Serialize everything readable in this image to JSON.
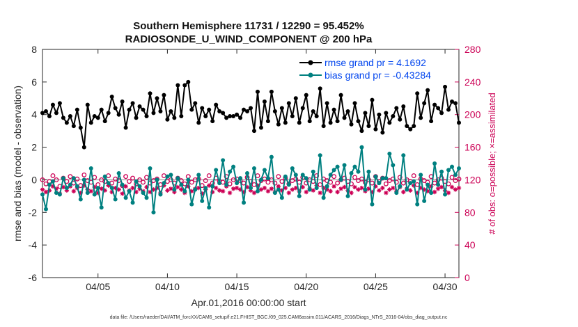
{
  "chart_data": {
    "type": "line",
    "title": "Southern Hemisphere 11731 / 12290 = 95.452%",
    "subtitle": "RADIOSONDE_U_WIND_COMPONENT @ 200 hPa",
    "xlabel": "Apr.01,2016 00:00:00 start",
    "ylabel": "rmse and bias (model - observation)",
    "y2label": "# of obs: o=possible; ×=assimilated",
    "xlim": [
      1,
      31
    ],
    "ylim": [
      -6,
      8
    ],
    "y2lim": [
      0,
      280
    ],
    "x_ticks": [
      5,
      10,
      15,
      20,
      25,
      30
    ],
    "x_tick_labels": [
      "04/05",
      "04/10",
      "04/15",
      "04/20",
      "04/25",
      "04/30"
    ],
    "y_ticks": [
      -6,
      -4,
      -2,
      0,
      2,
      4,
      6,
      8
    ],
    "y_tick_labels": [
      "-6",
      "-4",
      "-2",
      "0",
      "2",
      "4",
      "6",
      "8"
    ],
    "y2_ticks": [
      0,
      40,
      80,
      120,
      160,
      200,
      240,
      280
    ],
    "y2_tick_labels": [
      "0",
      "40",
      "80",
      "120",
      "160",
      "200",
      "240",
      "280"
    ],
    "x": [
      1.0,
      1.25,
      1.5,
      1.75,
      2.0,
      2.25,
      2.5,
      2.75,
      3.0,
      3.25,
      3.5,
      3.75,
      4.0,
      4.25,
      4.5,
      4.75,
      5.0,
      5.25,
      5.5,
      5.75,
      6.0,
      6.25,
      6.5,
      6.75,
      7.0,
      7.25,
      7.5,
      7.75,
      8.0,
      8.25,
      8.5,
      8.75,
      9.0,
      9.25,
      9.5,
      9.75,
      10.0,
      10.25,
      10.5,
      10.75,
      11.0,
      11.25,
      11.5,
      11.75,
      12.0,
      12.25,
      12.5,
      12.75,
      13.0,
      13.25,
      13.5,
      13.75,
      14.0,
      14.25,
      14.5,
      14.75,
      15.0,
      15.25,
      15.5,
      15.75,
      16.0,
      16.25,
      16.5,
      16.75,
      17.0,
      17.25,
      17.5,
      17.75,
      18.0,
      18.25,
      18.5,
      18.75,
      19.0,
      19.25,
      19.5,
      19.75,
      20.0,
      20.25,
      20.5,
      20.75,
      21.0,
      21.25,
      21.5,
      21.75,
      22.0,
      22.25,
      22.5,
      22.75,
      23.0,
      23.25,
      23.5,
      23.75,
      24.0,
      24.25,
      24.5,
      24.75,
      25.0,
      25.25,
      25.5,
      25.75,
      26.0,
      26.25,
      26.5,
      26.75,
      27.0,
      27.25,
      27.5,
      27.75,
      28.0,
      28.25,
      28.5,
      28.75,
      29.0,
      29.25,
      29.5,
      29.75,
      30.0,
      30.25,
      30.5,
      30.75,
      31.0
    ],
    "series": [
      {
        "name": "rmse grand pr = 4.1692",
        "color": "#000000",
        "values": [
          4.1,
          4.2,
          3.9,
          4.6,
          4.1,
          4.7,
          3.8,
          3.5,
          3.9,
          3.3,
          4.3,
          3.2,
          2.0,
          4.6,
          3.5,
          3.9,
          3.8,
          4.3,
          3.6,
          4.1,
          5.1,
          4.4,
          4.0,
          4.8,
          3.2,
          4.3,
          4.7,
          3.8,
          4.5,
          4.3,
          3.9,
          5.3,
          4.1,
          5.0,
          4.2,
          5.2,
          3.7,
          4.2,
          3.8,
          5.8,
          3.9,
          5.8,
          6.0,
          4.3,
          4.7,
          3.5,
          4.4,
          3.9,
          4.3,
          3.6,
          4.6,
          4.2,
          4.1,
          3.8,
          3.9,
          3.9,
          4.0,
          3.8,
          4.3,
          4.2,
          4.4,
          3.0,
          5.4,
          3.2,
          4.8,
          3.6,
          5.4,
          4.2,
          3.4,
          4.4,
          3.5,
          4.7,
          3.9,
          5.0,
          3.5,
          4.4,
          5.2,
          3.6,
          4.2,
          3.9,
          5.6,
          3.3,
          4.7,
          3.5,
          4.3,
          3.6,
          5.2,
          3.8,
          4.2,
          3.4,
          4.7,
          3.6,
          3.0,
          4.1,
          3.3,
          4.9,
          3.1,
          4.0,
          2.9,
          4.1,
          3.5,
          3.9,
          4.4,
          3.7,
          4.5,
          3.3,
          3.1,
          3.3,
          5.3,
          3.8,
          4.7,
          5.5,
          3.6,
          4.6,
          4.4,
          4.1,
          5.7,
          4.3,
          4.8,
          4.7,
          3.5
        ],
        "rendered_markers": true
      },
      {
        "name": "bias grand pr = -0.43284",
        "color": "#008080",
        "values": [
          -0.9,
          -1.8,
          -0.3,
          -0.1,
          -0.8,
          -0.9,
          0.1,
          -0.5,
          -0.3,
          0.1,
          -0.4,
          -1.2,
          0.0,
          -0.8,
          0.7,
          -0.9,
          -0.5,
          -1.7,
          0.2,
          -0.2,
          -0.5,
          -1.2,
          0.4,
          -0.3,
          -1.1,
          -0.7,
          -1.4,
          -0.1,
          -0.4,
          -0.8,
          -1.1,
          0.7,
          -2.0,
          0.0,
          -0.9,
          -0.2,
          0.2,
          0.3,
          -0.6,
          0.1,
          -0.3,
          -0.7,
          0.0,
          -1.5,
          -0.6,
          0.3,
          -1.3,
          -0.5,
          -1.7,
          -0.4,
          0.6,
          -0.2,
          1.2,
          -0.3,
          0.5,
          0.8,
          -0.2,
          0.1,
          -1.4,
          0.4,
          -0.5,
          0.7,
          -0.7,
          0.0,
          0.6,
          0.1,
          1.4,
          -0.8,
          -0.6,
          -1.1,
          0.2,
          -0.3,
          0.7,
          0.3,
          -1.0,
          0.3,
          0.1,
          -0.6,
          0.5,
          -0.5,
          1.5,
          -1.1,
          -0.4,
          0.3,
          0.6,
          0.8,
          0.0,
          0.9,
          -1.0,
          0.4,
          0.8,
          0.5,
          2.0,
          -0.6,
          0.5,
          -1.5,
          0.2,
          -0.2,
          0.1,
          0.1,
          1.6,
          0.9,
          -0.8,
          -0.4,
          1.5,
          -0.6,
          -0.2,
          -0.1,
          -1.5,
          0.3,
          -1.3,
          -0.3,
          -0.8,
          1.0,
          -0.3,
          0.5,
          -0.9,
          0.6,
          0.8,
          0.3,
          0.7
        ],
        "rendered_markers": true
      }
    ],
    "obs_possible": [
      120,
      115,
      118,
      125,
      120,
      112,
      122,
      118,
      124,
      116,
      121,
      113,
      126,
      119,
      117,
      123,
      114,
      120,
      118,
      125,
      116,
      121,
      119,
      113,
      124,
      118,
      122,
      115,
      120,
      117,
      123,
      116,
      119,
      121,
      114,
      125,
      118,
      120,
      116,
      122,
      119,
      115,
      124,
      117,
      120,
      121,
      113,
      119,
      125,
      116,
      122,
      118,
      117,
      124,
      115,
      120,
      121,
      119,
      116,
      123,
      118,
      114,
      125,
      119,
      121,
      117,
      120,
      116,
      124,
      118,
      122,
      115,
      119,
      121,
      117,
      123,
      116,
      120,
      118,
      125,
      114,
      121,
      119,
      117,
      124,
      116,
      120,
      122,
      118,
      115,
      123,
      119,
      121,
      117,
      120,
      116,
      124,
      118,
      122,
      115,
      119,
      121,
      117,
      123,
      116,
      120,
      118,
      125,
      114,
      121,
      119,
      117,
      124,
      116,
      120,
      122,
      118,
      115,
      123,
      119,
      121
    ],
    "obs_assimilated": [
      108,
      105,
      107,
      112,
      109,
      103,
      111,
      107,
      112,
      106,
      110,
      104,
      113,
      108,
      106,
      111,
      104,
      109,
      107,
      113,
      105,
      110,
      108,
      103,
      112,
      107,
      110,
      105,
      109,
      106,
      111,
      105,
      108,
      110,
      104,
      113,
      107,
      109,
      105,
      111,
      108,
      104,
      112,
      106,
      109,
      110,
      103,
      108,
      113,
      105,
      110,
      107,
      106,
      112,
      104,
      109,
      110,
      108,
      105,
      111,
      107,
      104,
      113,
      108,
      110,
      106,
      109,
      105,
      112,
      107,
      110,
      104,
      108,
      110,
      106,
      111,
      105,
      109,
      107,
      113,
      104,
      110,
      108,
      106,
      112,
      105,
      109,
      111,
      107,
      104,
      111,
      108,
      110,
      106,
      109,
      105,
      112,
      107,
      110,
      104,
      108,
      110,
      106,
      111,
      105,
      109,
      107,
      113,
      104,
      110,
      108,
      106,
      112,
      105,
      109,
      111,
      107,
      104,
      111,
      108,
      110
    ],
    "obs_color": "#cc0055",
    "zero_line": 0,
    "legend_position": "top-right",
    "footer": "data file: /Users/raeder/DAI/ATM_forcXX/CAM6_setup/f.e21.FHIST_BGC.f09_025.CAM6assim.011/ACARS_2016/Diags_NTrS_2016-04/obs_diag_output.nc"
  }
}
